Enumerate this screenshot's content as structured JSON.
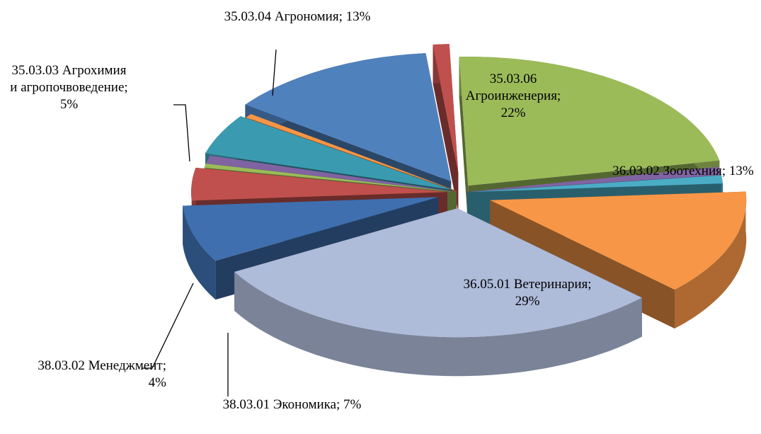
{
  "chart_data": {
    "type": "pie3d",
    "values": [
      22,
      1,
      1,
      13,
      29,
      7,
      4,
      0.5,
      1,
      5,
      0.5,
      13,
      1
    ],
    "value_labels": [
      "35.03.06 Агроинженерия; 22%",
      null,
      null,
      "36.03.02 Зоотехния; 13%",
      "36.05.01 Ветеринария; 29%",
      "38.03.01 Экономика; 7%",
      "38.03.02 Менеджмент; 4%",
      null,
      null,
      "35.03.03 Агрохимия и агропочвоведение; 5%",
      null,
      "35.03.04 Агрономия; 13%",
      null
    ],
    "colors": [
      "#9bbb59",
      "#8064a2",
      "#4bacc6",
      "#f79646",
      "#aebbd9",
      "#3f6fae",
      "#c0504d",
      "#9bbb59",
      "#8064a2",
      "#3a9bb0",
      "#f79646",
      "#4f81bd",
      "#c0504d"
    ]
  }
}
